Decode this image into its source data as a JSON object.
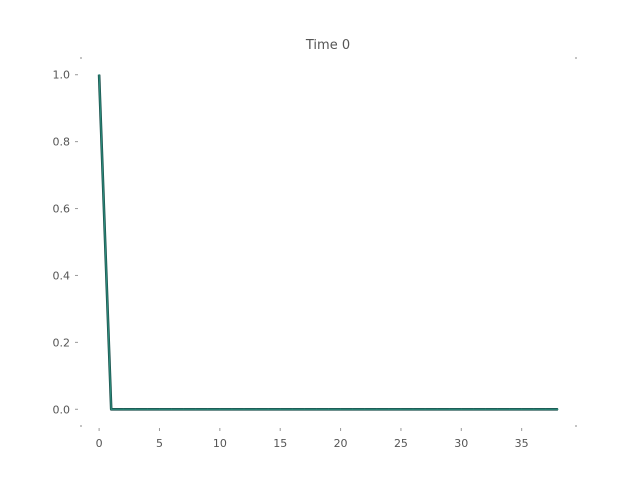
{
  "chart_data": {
    "type": "line",
    "title": "Time 0",
    "xlabel": "",
    "ylabel": "",
    "xlim": [
      -1.5,
      39.5
    ],
    "ylim": [
      -0.05,
      1.05
    ],
    "xticks": [
      0,
      5,
      10,
      15,
      20,
      25,
      30,
      35
    ],
    "xtick_labels": [
      "0",
      "5",
      "10",
      "15",
      "20",
      "25",
      "30",
      "35"
    ],
    "yticks": [
      0.0,
      0.2,
      0.4,
      0.6,
      0.8,
      1.0
    ],
    "ytick_labels": [
      "0.0",
      "0.2",
      "0.4",
      "0.6",
      "0.8",
      "1.0"
    ],
    "grid": false,
    "series": [
      {
        "color": "#2a8a7a",
        "x": [
          0,
          1,
          2,
          3,
          4,
          5,
          6,
          7,
          8,
          9,
          10,
          11,
          12,
          13,
          14,
          15,
          16,
          17,
          18,
          19,
          20,
          21,
          22,
          23,
          24,
          25,
          26,
          27,
          28,
          29,
          30,
          31,
          32,
          33,
          34,
          35,
          36,
          37,
          38
        ],
        "y": [
          1.0,
          0,
          0,
          0,
          0,
          0,
          0,
          0,
          0,
          0,
          0,
          0,
          0,
          0,
          0,
          0,
          0,
          0,
          0,
          0,
          0,
          0,
          0,
          0,
          0,
          0,
          0,
          0,
          0,
          0,
          0,
          0,
          0,
          0,
          0,
          0,
          0,
          0,
          0
        ]
      }
    ]
  }
}
